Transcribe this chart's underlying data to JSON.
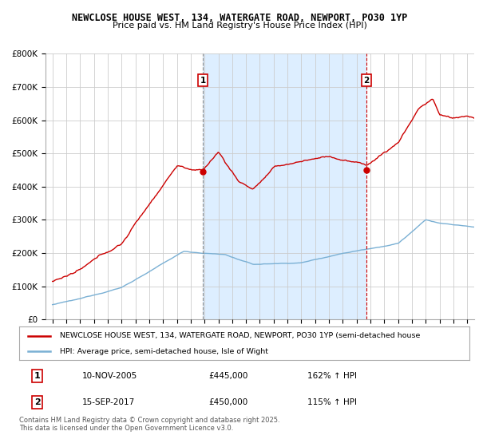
{
  "title_line1": "NEWCLOSE HOUSE WEST, 134, WATERGATE ROAD, NEWPORT, PO30 1YP",
  "title_line2": "Price paid vs. HM Land Registry's House Price Index (HPI)",
  "legend_label_red": "NEWCLOSE HOUSE WEST, 134, WATERGATE ROAD, NEWPORT, PO30 1YP (semi-detached house",
  "legend_label_blue": "HPI: Average price, semi-detached house, Isle of Wight",
  "footnote": "Contains HM Land Registry data © Crown copyright and database right 2025.\nThis data is licensed under the Open Government Licence v3.0.",
  "sale1_date": "10-NOV-2005",
  "sale1_price": 445000,
  "sale1_hpi": "162% ↑ HPI",
  "sale2_date": "15-SEP-2017",
  "sale2_price": 450000,
  "sale2_hpi": "115% ↑ HPI",
  "vline1_x": 2005.87,
  "vline2_x": 2017.71,
  "red_color": "#cc0000",
  "blue_color": "#7ab0d4",
  "vline_color": "#cc0000",
  "shade_color": "#ddeeff",
  "background_color": "#ffffff",
  "grid_color": "#cccccc",
  "ylim_min": 0,
  "ylim_max": 800000,
  "xlim_min": 1994.5,
  "xlim_max": 2025.5,
  "yticks": [
    0,
    100000,
    200000,
    300000,
    400000,
    500000,
    600000,
    700000,
    800000
  ],
  "ylabels": [
    "£0",
    "£100K",
    "£200K",
    "£300K",
    "£400K",
    "£500K",
    "£600K",
    "£700K",
    "£800K"
  ]
}
